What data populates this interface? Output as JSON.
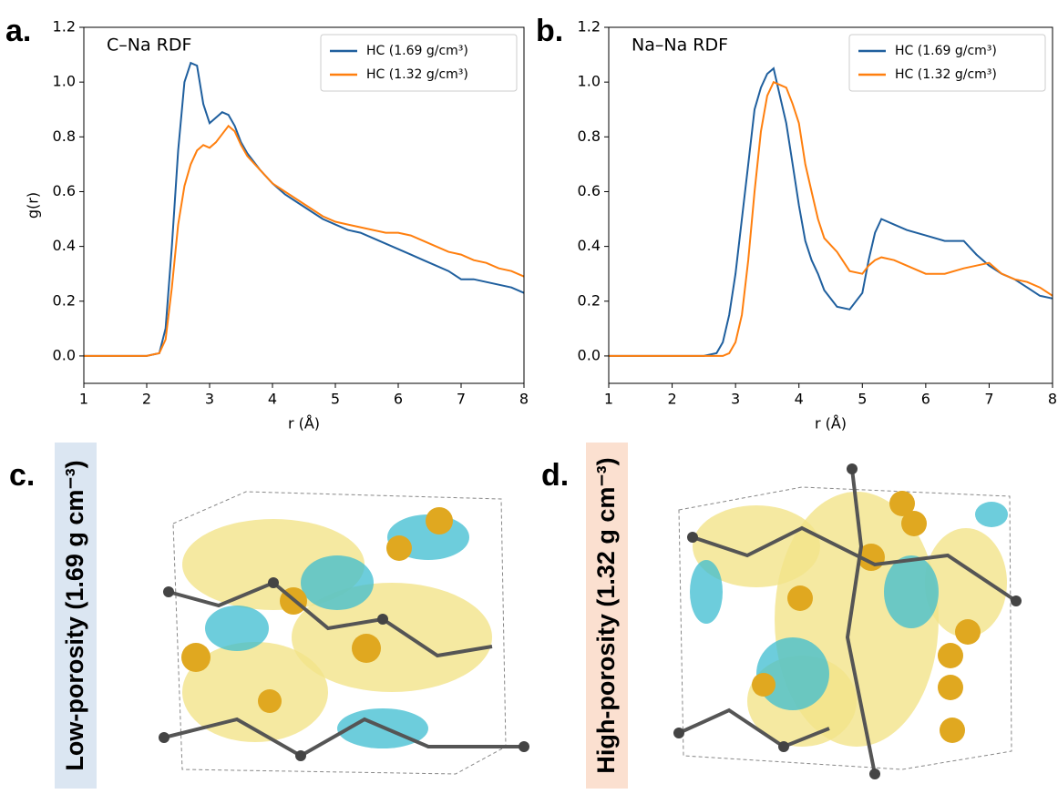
{
  "panel_labels": [
    "a.",
    "b.",
    "c.",
    "d."
  ],
  "structures": [
    {
      "caption": "Low-porosity (1.69 g cm⁻³)"
    },
    {
      "caption": "High-porosity (1.32 g cm⁻³)"
    }
  ],
  "chart_data": [
    {
      "type": "line",
      "annotation": "C–Na RDF",
      "xlabel": "r (Å)",
      "ylabel": "g(r)",
      "legend": "upper right",
      "xlim": [
        1,
        8
      ],
      "ylim": [
        -0.1,
        1.2
      ],
      "xticks": [
        1,
        2,
        3,
        4,
        5,
        6,
        7,
        8
      ],
      "yticks": [
        {
          "value": 0,
          "label": "0.0"
        },
        0.2,
        0.4,
        0.6,
        0.8,
        {
          "value": 1,
          "label": "1.0"
        },
        1.2
      ],
      "x": [
        1,
        1.5,
        2.0,
        2.2,
        2.3,
        2.4,
        2.5,
        2.6,
        2.7,
        2.8,
        2.9,
        3.0,
        3.1,
        3.2,
        3.3,
        3.4,
        3.5,
        3.6,
        3.8,
        4.0,
        4.2,
        4.4,
        4.6,
        4.8,
        5.0,
        5.2,
        5.4,
        5.6,
        5.8,
        6.0,
        6.2,
        6.4,
        6.6,
        6.8,
        7.0,
        7.2,
        7.4,
        7.6,
        7.8,
        8.0
      ],
      "series": [
        {
          "name": "HC (1.69 g/cm³)",
          "color": "#1f5f9e",
          "values": [
            0,
            0,
            0,
            0.01,
            0.1,
            0.4,
            0.75,
            1.0,
            1.07,
            1.06,
            0.92,
            0.85,
            0.87,
            0.89,
            0.88,
            0.84,
            0.78,
            0.74,
            0.68,
            0.63,
            0.59,
            0.56,
            0.53,
            0.5,
            0.48,
            0.46,
            0.45,
            0.43,
            0.41,
            0.39,
            0.37,
            0.35,
            0.33,
            0.31,
            0.28,
            0.28,
            0.27,
            0.26,
            0.25,
            0.23
          ]
        },
        {
          "name": "HC (1.32 g/cm³)",
          "color": "#ff7f0e",
          "values": [
            0,
            0,
            0,
            0.01,
            0.06,
            0.25,
            0.48,
            0.62,
            0.7,
            0.75,
            0.77,
            0.76,
            0.78,
            0.81,
            0.84,
            0.82,
            0.77,
            0.73,
            0.68,
            0.63,
            0.6,
            0.57,
            0.54,
            0.51,
            0.49,
            0.48,
            0.47,
            0.46,
            0.45,
            0.45,
            0.44,
            0.42,
            0.4,
            0.38,
            0.37,
            0.35,
            0.34,
            0.32,
            0.31,
            0.29
          ]
        }
      ]
    },
    {
      "type": "line",
      "annotation": "Na–Na RDF",
      "xlabel": "r (Å)",
      "legend": "upper right",
      "xlim": [
        1,
        8
      ],
      "ylim": [
        -0.1,
        1.2
      ],
      "xticks": [
        1,
        2,
        3,
        4,
        5,
        6,
        7,
        8
      ],
      "yticks": [
        {
          "value": 0,
          "label": "0.0"
        },
        0.2,
        0.4,
        0.6,
        0.8,
        {
          "value": 1,
          "label": "1.0"
        },
        1.2
      ],
      "x": [
        1,
        2,
        2.5,
        2.7,
        2.8,
        2.9,
        3.0,
        3.1,
        3.2,
        3.3,
        3.4,
        3.5,
        3.6,
        3.7,
        3.8,
        3.9,
        4.0,
        4.1,
        4.2,
        4.3,
        4.4,
        4.6,
        4.8,
        5.0,
        5.1,
        5.2,
        5.3,
        5.5,
        5.7,
        6.0,
        6.3,
        6.6,
        6.8,
        7.0,
        7.2,
        7.4,
        7.6,
        7.8,
        8.0
      ],
      "series": [
        {
          "name": "HC (1.69 g/cm³)",
          "color": "#1f5f9e",
          "values": [
            0,
            0,
            0,
            0.01,
            0.05,
            0.15,
            0.3,
            0.5,
            0.7,
            0.9,
            0.98,
            1.03,
            1.05,
            0.95,
            0.85,
            0.7,
            0.55,
            0.42,
            0.35,
            0.3,
            0.24,
            0.18,
            0.17,
            0.23,
            0.35,
            0.45,
            0.5,
            0.48,
            0.46,
            0.44,
            0.42,
            0.42,
            0.37,
            0.33,
            0.3,
            0.28,
            0.25,
            0.22,
            0.21
          ]
        },
        {
          "name": "HC (1.32 g/cm³)",
          "color": "#ff7f0e",
          "values": [
            0,
            0,
            0,
            0,
            0,
            0.01,
            0.05,
            0.15,
            0.35,
            0.6,
            0.82,
            0.95,
            1.0,
            0.99,
            0.98,
            0.92,
            0.85,
            0.7,
            0.6,
            0.5,
            0.43,
            0.38,
            0.31,
            0.3,
            0.33,
            0.35,
            0.36,
            0.35,
            0.33,
            0.3,
            0.3,
            0.32,
            0.33,
            0.34,
            0.3,
            0.28,
            0.27,
            0.25,
            0.22
          ]
        }
      ]
    }
  ]
}
